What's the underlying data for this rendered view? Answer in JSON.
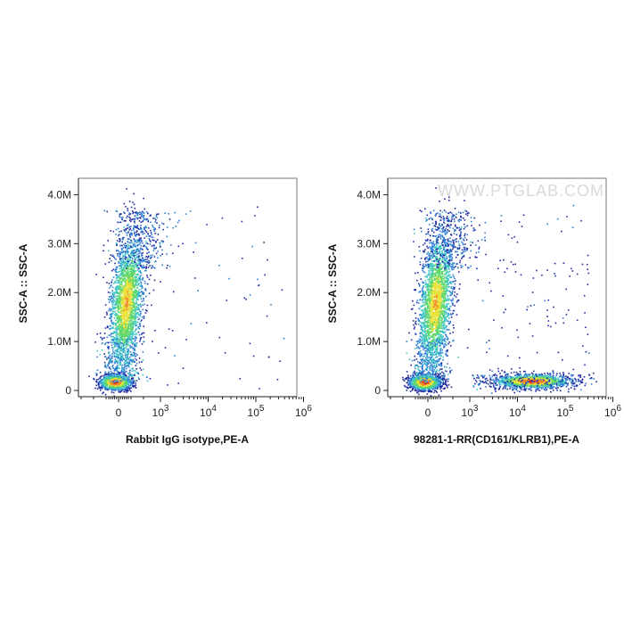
{
  "watermark": "WWW.PTGLAB.COM",
  "chart_data": [
    {
      "type": "scatter",
      "xlabel": "Rabbit IgG isotype,PE-A",
      "ylabel": "SSC-A :: SSC-A",
      "x_scale": "biexponential",
      "x_ticks": [
        {
          "value": 0,
          "base": "0",
          "exp": ""
        },
        {
          "value": 1000,
          "base": "10",
          "exp": "3"
        },
        {
          "value": 10000,
          "base": "10",
          "exp": "4"
        },
        {
          "value": 100000,
          "base": "10",
          "exp": "5"
        },
        {
          "value": 1000000,
          "base": "10",
          "exp": "6"
        }
      ],
      "y_ticks": [
        {
          "value": 0,
          "label": "0"
        },
        {
          "value": 1000000,
          "label": "1.0M"
        },
        {
          "value": 2000000,
          "label": "2.0M"
        },
        {
          "value": 3000000,
          "label": "3.0M"
        },
        {
          "value": 4000000,
          "label": "4.0M"
        }
      ],
      "ylim": [
        0,
        4300000
      ],
      "color_map": [
        "#1f2a9e",
        "#2f7fd6",
        "#3fc5c5",
        "#5ed86a",
        "#e8e23a",
        "#f08a24",
        "#e52b1e"
      ],
      "populations": [
        {
          "x_center": 0,
          "y_center": 1800000,
          "shape": "elongated vertical",
          "density": "high",
          "y_range": [
            400000,
            3700000
          ]
        },
        {
          "x_center": 0,
          "y_center": 180000,
          "shape": "compact",
          "density": "very high"
        }
      ]
    },
    {
      "type": "scatter",
      "xlabel": "98281-1-RR(CD161/KLRB1),PE-A",
      "ylabel": "SSC-A :: SSC-A",
      "x_scale": "biexponential",
      "x_ticks": [
        {
          "value": 0,
          "base": "0",
          "exp": ""
        },
        {
          "value": 1000,
          "base": "10",
          "exp": "3"
        },
        {
          "value": 10000,
          "base": "10",
          "exp": "4"
        },
        {
          "value": 100000,
          "base": "10",
          "exp": "5"
        },
        {
          "value": 1000000,
          "base": "10",
          "exp": "6"
        }
      ],
      "y_ticks": [
        {
          "value": 0,
          "label": "0"
        },
        {
          "value": 1000000,
          "label": "1.0M"
        },
        {
          "value": 2000000,
          "label": "2.0M"
        },
        {
          "value": 3000000,
          "label": "3.0M"
        },
        {
          "value": 4000000,
          "label": "4.0M"
        }
      ],
      "ylim": [
        0,
        4300000
      ],
      "color_map": [
        "#1f2a9e",
        "#2f7fd6",
        "#3fc5c5",
        "#5ed86a",
        "#e8e23a",
        "#f08a24",
        "#e52b1e"
      ],
      "populations": [
        {
          "x_center": 0,
          "y_center": 1800000,
          "shape": "elongated vertical",
          "density": "high",
          "y_range": [
            400000,
            3700000
          ]
        },
        {
          "x_center": 0,
          "y_center": 180000,
          "shape": "compact",
          "density": "very high"
        },
        {
          "x_center": 20000,
          "y_center": 200000,
          "shape": "horizontal",
          "density": "high",
          "x_range": [
            5000,
            200000
          ]
        }
      ]
    }
  ]
}
